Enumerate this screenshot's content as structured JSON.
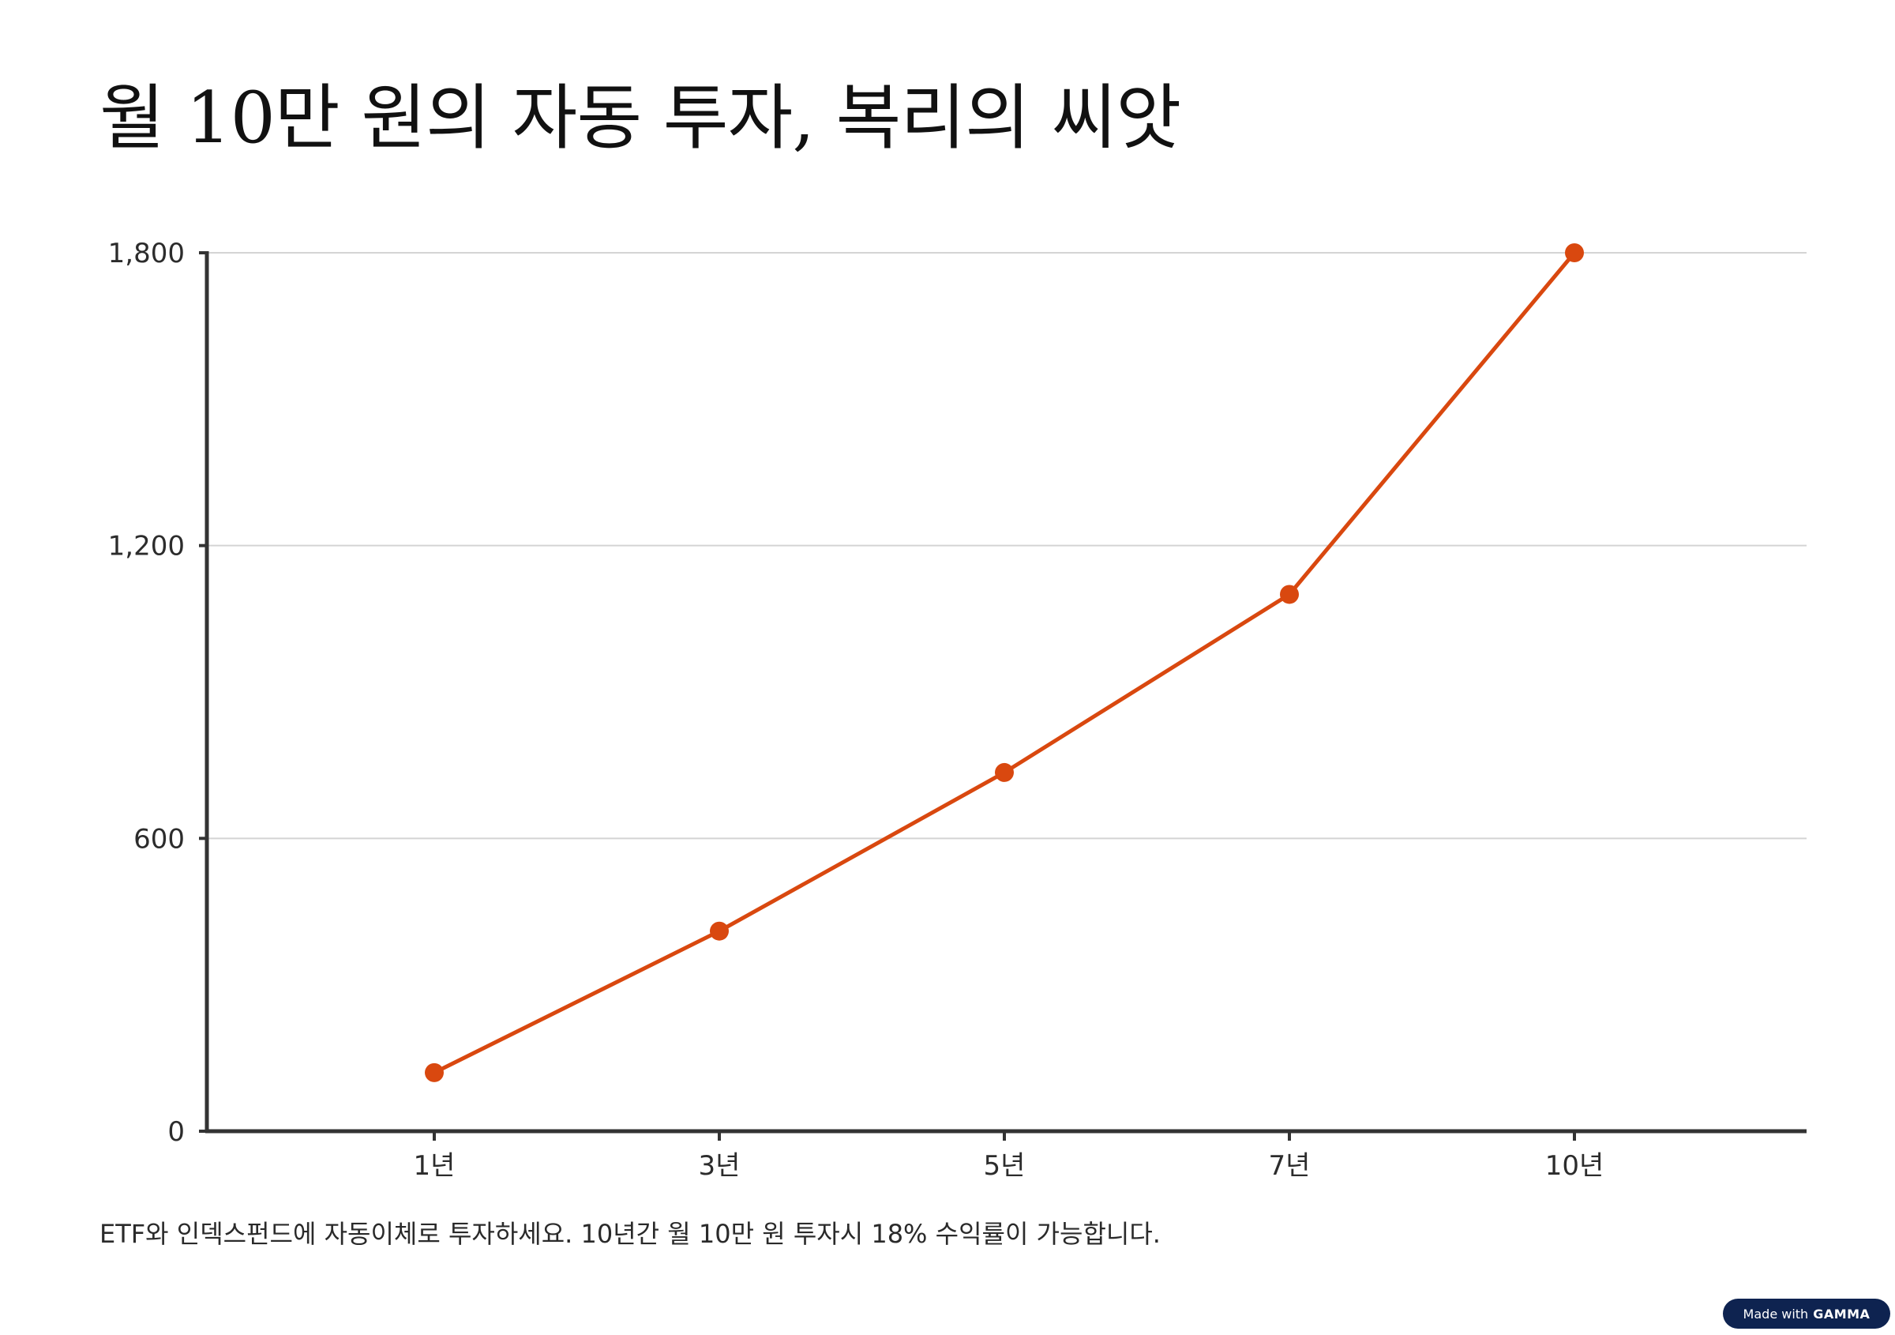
{
  "title": "월 10만 원의 자동 투자, 복리의 씨앗",
  "caption": "ETF와 인덱스펀드에 자동이체로 투자하세요. 10년간 월 10만 원 투자시 18% 수익률이 가능합니다.",
  "badge": {
    "prefix": "Made with",
    "brand": "GAMMA"
  },
  "colors": {
    "line": "#d9480f",
    "axis": "#333333",
    "grid": "#d4d4d4",
    "badge_bg": "#0e2350"
  },
  "chart_data": {
    "type": "line",
    "title": "",
    "xlabel": "",
    "ylabel": "",
    "categories": [
      "1년",
      "3년",
      "5년",
      "7년",
      "10년"
    ],
    "series": [
      {
        "values": [
          120,
          410,
          735,
          1100,
          1800
        ]
      }
    ],
    "ylim": [
      0,
      1800
    ],
    "yticks": [
      0,
      600,
      1200,
      1800
    ],
    "ytick_labels": [
      "0",
      "600",
      "1,200",
      "1,800"
    ],
    "grid": true,
    "legend": "none"
  }
}
